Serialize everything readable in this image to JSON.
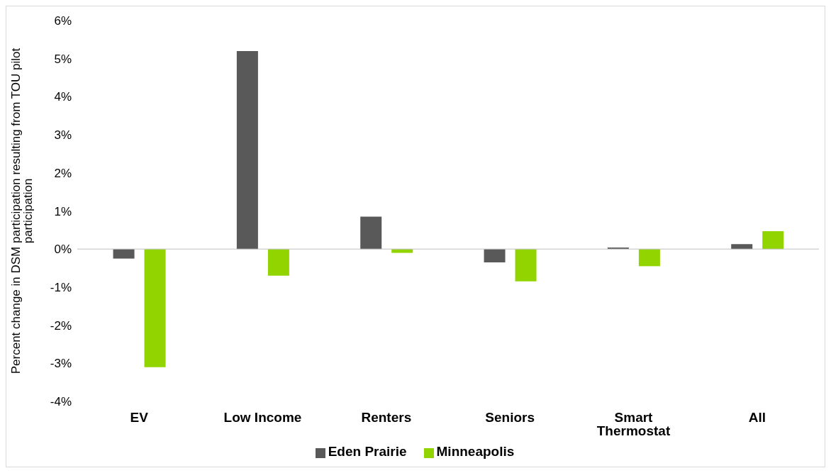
{
  "chart_data": {
    "type": "bar",
    "ylabel": "Percent change in DSM participation resulting from TOU pilot participation",
    "categories": [
      "EV",
      "Low Income",
      "Renters",
      "Seniors",
      "Smart Thermostat",
      "All"
    ],
    "series": [
      {
        "name": "Eden Prairie",
        "color": "#595959",
        "values": [
          -0.25,
          5.2,
          0.85,
          -0.35,
          0.04,
          0.13
        ]
      },
      {
        "name": "Minneapolis",
        "color": "#92d400",
        "values": [
          -3.1,
          -0.7,
          -0.1,
          -0.85,
          -0.45,
          0.47
        ]
      }
    ],
    "ylim": [
      -4,
      6
    ],
    "yticks": [
      {
        "value": -4,
        "label": "-4%"
      },
      {
        "value": -3,
        "label": "-3%"
      },
      {
        "value": -2,
        "label": "-2%"
      },
      {
        "value": -1,
        "label": "-1%"
      },
      {
        "value": 0,
        "label": "0%"
      },
      {
        "value": 1,
        "label": "1%"
      },
      {
        "value": 2,
        "label": "2%"
      },
      {
        "value": 3,
        "label": "3%"
      },
      {
        "value": 4,
        "label": "4%"
      },
      {
        "value": 5,
        "label": "5%"
      },
      {
        "value": 6,
        "label": "6%"
      }
    ],
    "legend": "bottom"
  }
}
